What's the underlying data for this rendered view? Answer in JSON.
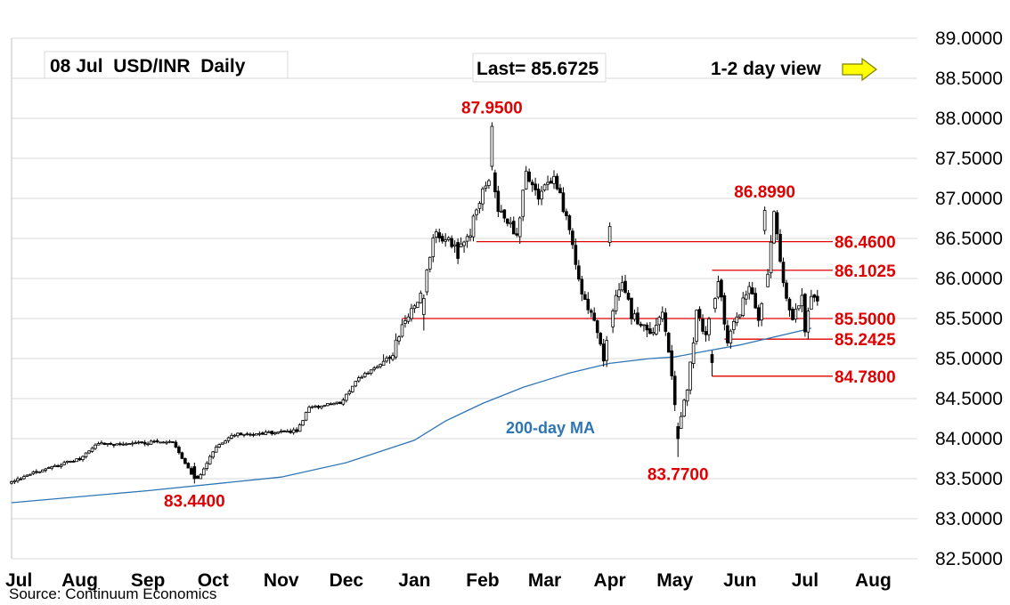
{
  "header": {
    "title": "08 Jul  USD/INR  Daily",
    "last": "Last= 85.6725",
    "view": "1-2 day view"
  },
  "source": "Source: Continuum Economics",
  "colors": {
    "grid": "#d9d9d9",
    "level_line": "#e00000",
    "level_text": "#e00000",
    "ma": "#2e75b6",
    "candle": "#000000",
    "arrow_fill": "#ffff00",
    "arrow_stroke": "#7f7f00"
  },
  "chart_data": {
    "type": "candlestick",
    "title": "08 Jul  USD/INR  Daily",
    "ylim": [
      82.5,
      89.0
    ],
    "y_ticks": [
      "89.0000",
      "88.5000",
      "88.0000",
      "87.5000",
      "87.0000",
      "86.5000",
      "86.0000",
      "85.5000",
      "85.0000",
      "84.5000",
      "84.0000",
      "83.5000",
      "83.0000",
      "82.5000"
    ],
    "y_tick_values": [
      89.0,
      88.5,
      88.0,
      87.5,
      87.0,
      86.5,
      86.0,
      85.5,
      85.0,
      84.5,
      84.0,
      83.5,
      83.0,
      82.5
    ],
    "x_ticks": [
      "Jul",
      "Aug",
      "Sep",
      "Oct",
      "Nov",
      "Dec",
      "Jan",
      "Feb",
      "Mar",
      "Apr",
      "May",
      "Jun",
      "Jul",
      "Aug"
    ],
    "x_tick_index": [
      0,
      22,
      44,
      65,
      87,
      108,
      130,
      152,
      172,
      193,
      214,
      235,
      256,
      278
    ],
    "grid": "horizontal",
    "series_ma_label": "200-day MA",
    "ma": [
      {
        "i": 0,
        "v": 83.2
      },
      {
        "i": 44,
        "v": 83.35
      },
      {
        "i": 87,
        "v": 83.52
      },
      {
        "i": 108,
        "v": 83.7
      },
      {
        "i": 130,
        "v": 83.98
      },
      {
        "i": 140,
        "v": 84.22
      },
      {
        "i": 152,
        "v": 84.44
      },
      {
        "i": 165,
        "v": 84.64
      },
      {
        "i": 180,
        "v": 84.82
      },
      {
        "i": 193,
        "v": 84.94
      },
      {
        "i": 206,
        "v": 85.0
      },
      {
        "i": 214,
        "v": 85.02
      },
      {
        "i": 225,
        "v": 85.1
      },
      {
        "i": 235,
        "v": 85.17
      },
      {
        "i": 245,
        "v": 85.26
      },
      {
        "i": 255,
        "v": 85.35
      },
      {
        "i": 258,
        "v": 85.38
      }
    ],
    "levels": [
      {
        "label": "86.4600",
        "value": 86.46,
        "from": 150
      },
      {
        "label": "86.1025",
        "value": 86.1025,
        "from": 226
      },
      {
        "label": "85.5000",
        "value": 85.5,
        "from": 126
      },
      {
        "label": "85.2425",
        "value": 85.2425,
        "from": 230
      },
      {
        "label": "84.7800",
        "value": 84.78,
        "from": 226
      }
    ],
    "annotations": [
      {
        "label": "87.9500",
        "value": 87.95,
        "i": 155,
        "pos": "above"
      },
      {
        "label": "86.8990",
        "value": 86.899,
        "i": 243,
        "pos": "above"
      },
      {
        "label": "83.7700",
        "value": 83.77,
        "i": 215,
        "pos": "below"
      },
      {
        "label": "83.4400",
        "value": 83.44,
        "i": 59,
        "pos": "below"
      }
    ],
    "anchors": [
      {
        "i": 0,
        "v": 83.45
      },
      {
        "i": 10,
        "v": 83.62
      },
      {
        "i": 22,
        "v": 83.75
      },
      {
        "i": 28,
        "v": 83.95
      },
      {
        "i": 35,
        "v": 83.92
      },
      {
        "i": 44,
        "v": 83.95
      },
      {
        "i": 52,
        "v": 83.96
      },
      {
        "i": 58,
        "v": 83.55
      },
      {
        "i": 60,
        "v": 83.5
      },
      {
        "i": 66,
        "v": 83.9
      },
      {
        "i": 72,
        "v": 84.05
      },
      {
        "i": 87,
        "v": 84.08
      },
      {
        "i": 92,
        "v": 84.1
      },
      {
        "i": 96,
        "v": 84.38
      },
      {
        "i": 106,
        "v": 84.45
      },
      {
        "i": 112,
        "v": 84.75
      },
      {
        "i": 118,
        "v": 84.9
      },
      {
        "i": 123,
        "v": 85.05
      },
      {
        "i": 126,
        "v": 85.45
      },
      {
        "i": 133,
        "v": 85.85
      },
      {
        "i": 136,
        "v": 86.55
      },
      {
        "i": 145,
        "v": 86.4
      },
      {
        "i": 148,
        "v": 86.58
      },
      {
        "i": 150,
        "v": 86.9
      },
      {
        "i": 155,
        "v": 87.35
      },
      {
        "i": 157,
        "v": 86.85
      },
      {
        "i": 163,
        "v": 86.55
      },
      {
        "i": 166,
        "v": 87.3
      },
      {
        "i": 170,
        "v": 87.0
      },
      {
        "i": 175,
        "v": 87.3
      },
      {
        "i": 179,
        "v": 86.75
      },
      {
        "i": 184,
        "v": 85.85
      },
      {
        "i": 188,
        "v": 85.45
      },
      {
        "i": 191,
        "v": 85.0
      },
      {
        "i": 194,
        "v": 85.6
      },
      {
        "i": 197,
        "v": 86.0
      },
      {
        "i": 200,
        "v": 85.55
      },
      {
        "i": 206,
        "v": 85.3
      },
      {
        "i": 210,
        "v": 85.6
      },
      {
        "i": 213,
        "v": 84.8
      },
      {
        "i": 215,
        "v": 84.1
      },
      {
        "i": 218,
        "v": 84.6
      },
      {
        "i": 221,
        "v": 85.55
      },
      {
        "i": 224,
        "v": 85.3
      },
      {
        "i": 228,
        "v": 85.95
      },
      {
        "i": 231,
        "v": 85.25
      },
      {
        "i": 235,
        "v": 85.6
      },
      {
        "i": 238,
        "v": 85.95
      },
      {
        "i": 241,
        "v": 85.5
      },
      {
        "i": 244,
        "v": 86.1
      },
      {
        "i": 246,
        "v": 86.8
      },
      {
        "i": 249,
        "v": 85.95
      },
      {
        "i": 252,
        "v": 85.5
      },
      {
        "i": 255,
        "v": 85.75
      },
      {
        "i": 256,
        "v": 85.35
      },
      {
        "i": 258,
        "v": 85.8
      },
      {
        "i": 260,
        "v": 85.67
      }
    ],
    "spikes": [
      {
        "i": 133,
        "h": 85.8,
        "l": 85.35,
        "o": 85.55,
        "c": 85.75
      },
      {
        "i": 155,
        "h": 87.95,
        "l": 87.35,
        "o": 87.4,
        "c": 87.9
      },
      {
        "i": 144,
        "h": 86.5,
        "l": 86.18,
        "o": 86.45,
        "c": 86.25
      },
      {
        "i": 193,
        "h": 86.7,
        "l": 86.4,
        "o": 86.45,
        "c": 86.65
      },
      {
        "i": 215,
        "h": 84.2,
        "l": 83.77,
        "o": 84.15,
        "c": 84.0
      },
      {
        "i": 226,
        "h": 85.1,
        "l": 84.78,
        "o": 85.05,
        "c": 84.95
      },
      {
        "i": 243,
        "h": 86.899,
        "l": 86.55,
        "o": 86.6,
        "c": 86.85
      },
      {
        "i": 59,
        "h": 83.7,
        "l": 83.44,
        "o": 83.65,
        "c": 83.5
      }
    ],
    "last_index": 260
  }
}
